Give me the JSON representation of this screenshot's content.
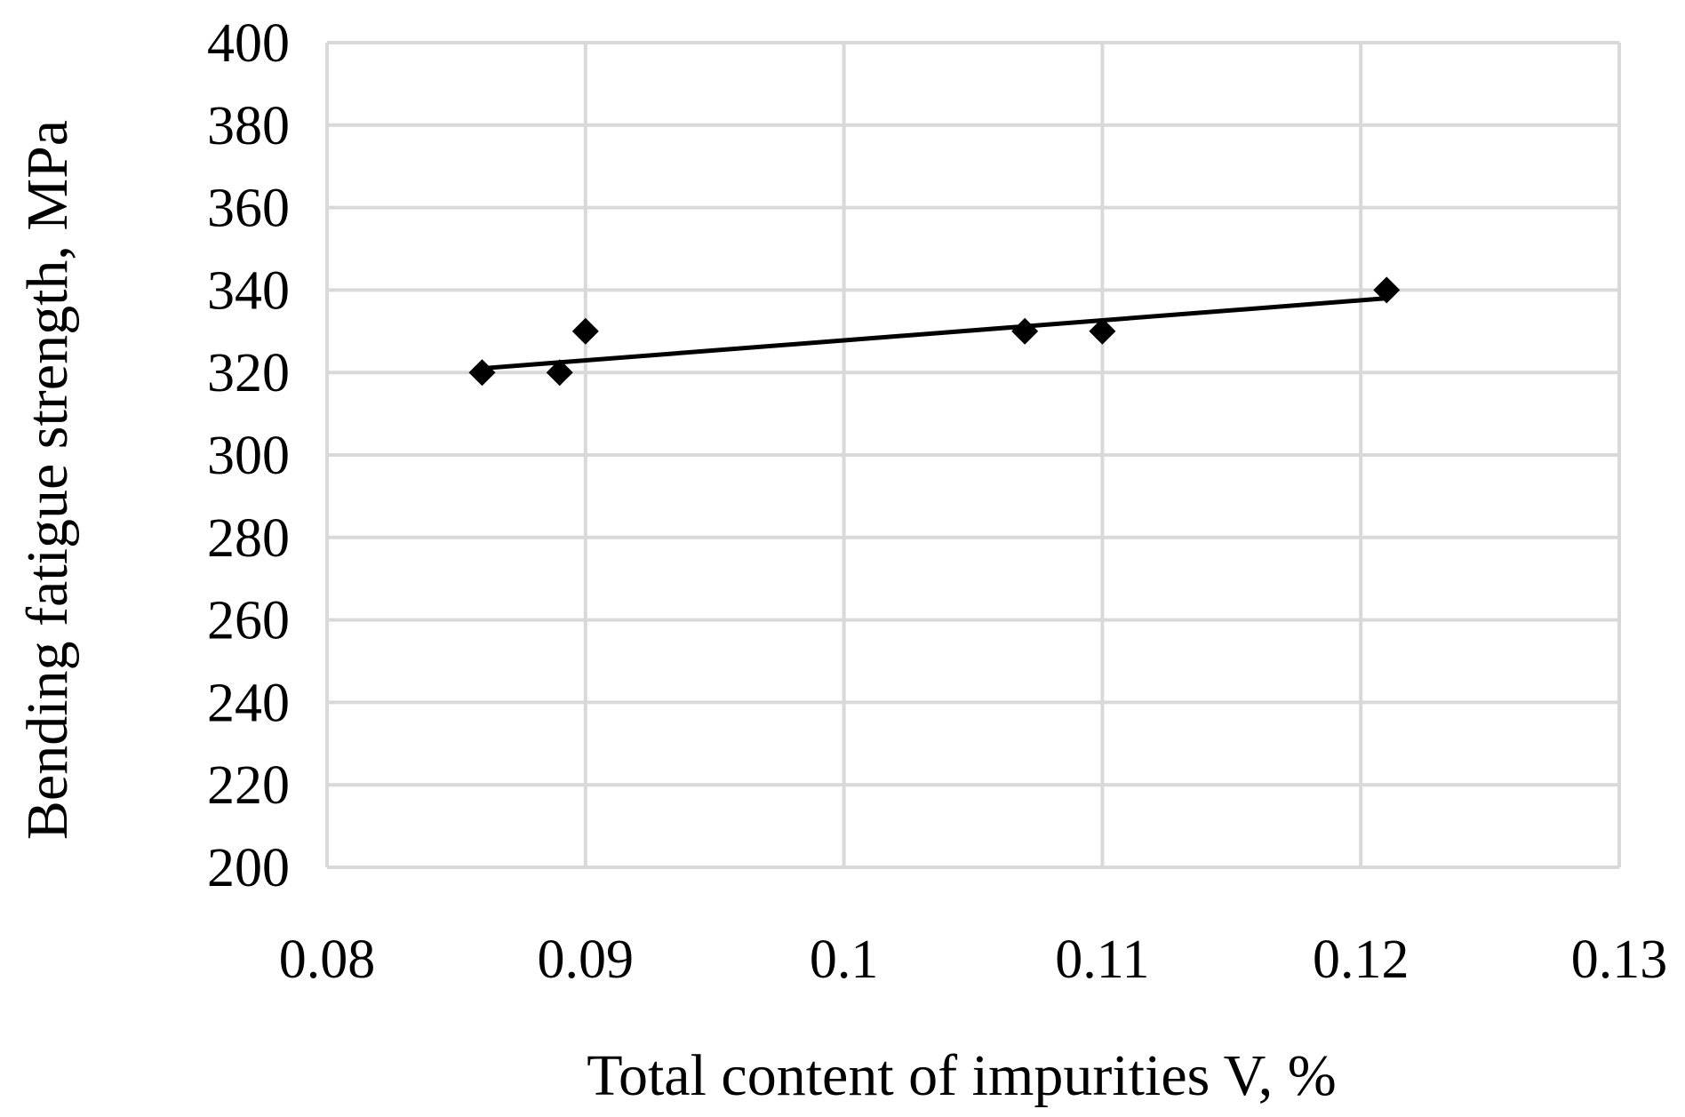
{
  "chart_data": {
    "type": "scatter",
    "xlabel": "Total content of impurities V, %",
    "ylabel": "Bending fatigue strength, MPa",
    "xlim": [
      0.08,
      0.13
    ],
    "ylim": [
      200,
      400
    ],
    "x_ticks": [
      "0.08",
      "0.09",
      "0.1",
      "0.11",
      "0.12",
      "0.13"
    ],
    "y_ticks": [
      "200",
      "220",
      "240",
      "260",
      "280",
      "300",
      "320",
      "340",
      "360",
      "380",
      "400"
    ],
    "grid": true,
    "legend": "none",
    "marker": "diamond",
    "marker_color": "#000000",
    "trendline": {
      "type": "linear",
      "color": "#000000",
      "x": [
        0.086,
        0.121
      ],
      "y": [
        321,
        338
      ]
    },
    "series": [
      {
        "points": [
          {
            "x": 0.086,
            "y": 320
          },
          {
            "x": 0.089,
            "y": 320
          },
          {
            "x": 0.09,
            "y": 330
          },
          {
            "x": 0.107,
            "y": 330
          },
          {
            "x": 0.11,
            "y": 330
          },
          {
            "x": 0.121,
            "y": 340
          }
        ]
      }
    ]
  }
}
